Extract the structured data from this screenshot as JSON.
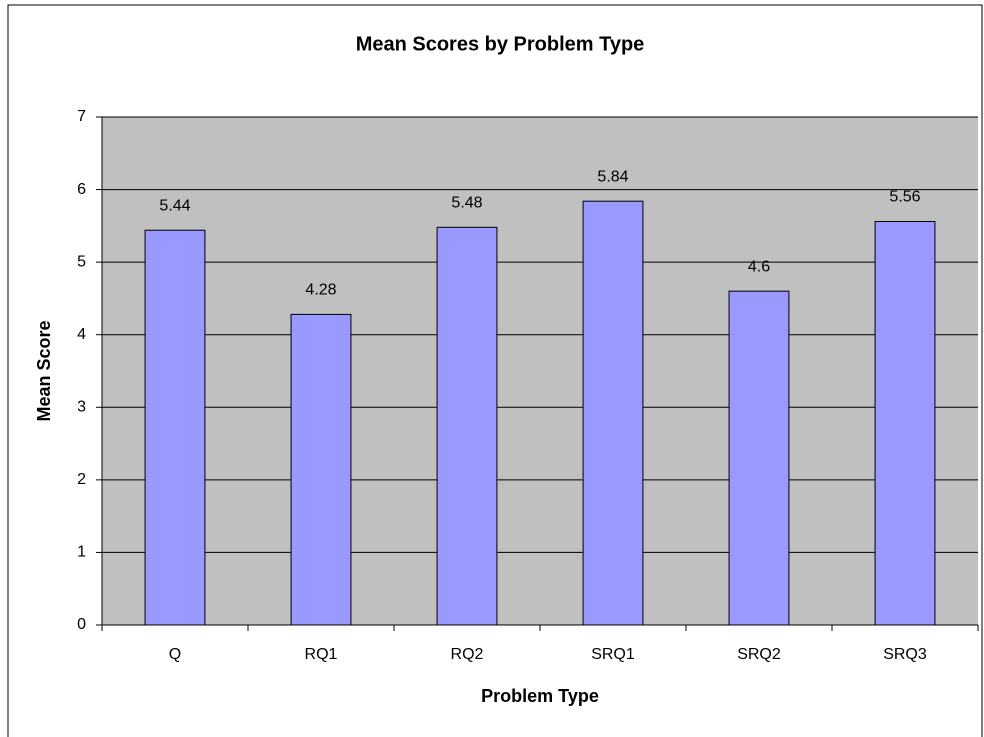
{
  "chart_data": {
    "type": "bar",
    "title": "Mean Scores by Problem Type",
    "x_label": "Problem Type",
    "y_label": "Mean Score",
    "categories": [
      "Q",
      "RQ1",
      "RQ2",
      "SRQ1",
      "SRQ2",
      "SRQ3"
    ],
    "values": [
      5.44,
      4.28,
      5.48,
      5.84,
      4.6,
      5.56
    ],
    "color": "#9999ff",
    "ylim": [
      0,
      7
    ],
    "yticks": [
      0,
      1,
      2,
      3,
      4,
      5,
      6,
      7
    ],
    "grid": true
  }
}
